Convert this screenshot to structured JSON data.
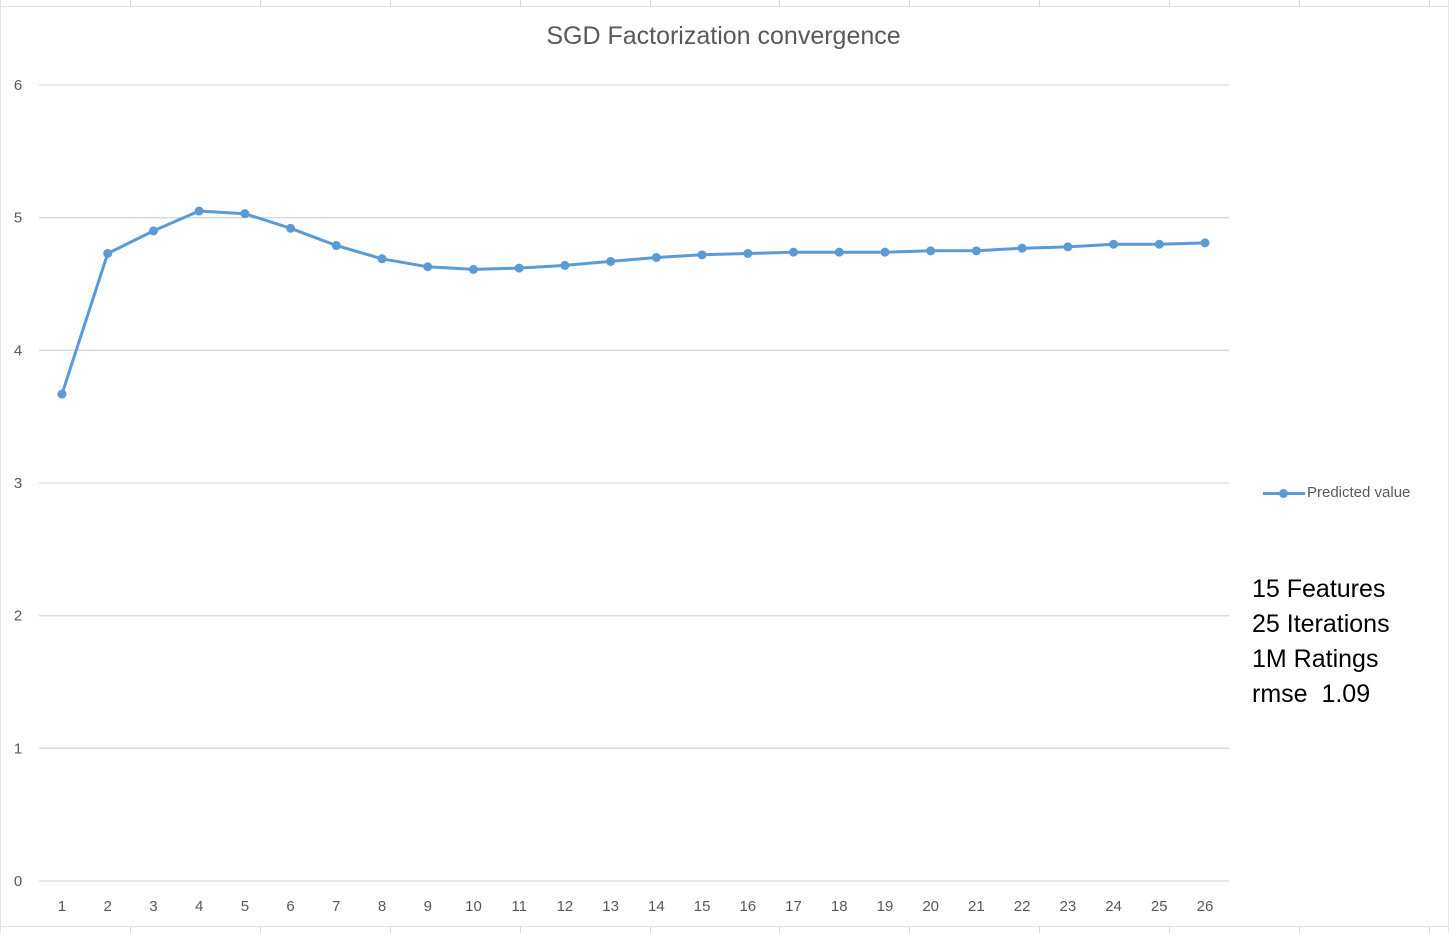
{
  "chart_data": {
    "type": "line",
    "title": "SGD Factorization convergence",
    "xlabel": "",
    "ylabel": "",
    "categories": [
      "1",
      "2",
      "3",
      "4",
      "5",
      "6",
      "7",
      "8",
      "9",
      "10",
      "11",
      "12",
      "13",
      "14",
      "15",
      "16",
      "17",
      "18",
      "19",
      "20",
      "21",
      "22",
      "23",
      "24",
      "25",
      "26"
    ],
    "series": [
      {
        "name": "Predicted value",
        "values": [
          3.67,
          4.73,
          4.9,
          5.05,
          5.03,
          4.92,
          4.79,
          4.69,
          4.63,
          4.61,
          4.62,
          4.64,
          4.67,
          4.7,
          4.72,
          4.73,
          4.74,
          4.74,
          4.74,
          4.75,
          4.75,
          4.77,
          4.78,
          4.8,
          4.8,
          4.81
        ]
      }
    ],
    "ylim": [
      0,
      6
    ],
    "yticks": [
      "0",
      "1",
      "2",
      "3",
      "4",
      "5",
      "6"
    ],
    "grid": true,
    "legend_position": "right",
    "line_color": "#5b9bd5",
    "grid_color": "#d9d9d9",
    "text_color": "#595959"
  },
  "annotations": [
    "15 Features",
    "25 Iterations",
    "1M Ratings",
    "rmse  1.09"
  ]
}
